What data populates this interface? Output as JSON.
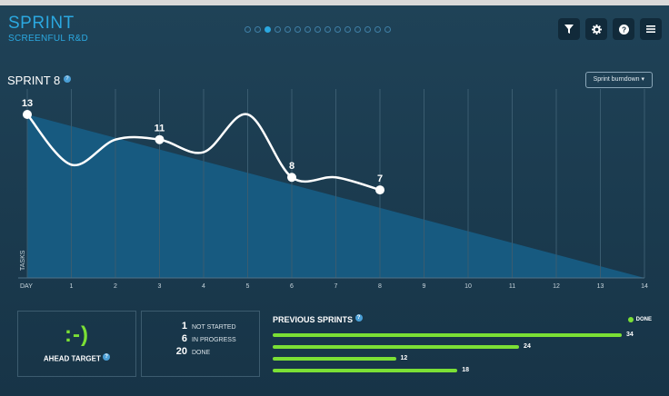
{
  "window": {
    "title": "Screenful"
  },
  "brand": {
    "title": "SPRINT",
    "subtitle": "SCREENFUL R&D"
  },
  "pager": {
    "count": 15,
    "active": 2
  },
  "toolbar": {
    "icons": [
      "filter-icon",
      "gear-icon",
      "help-icon",
      "menu-icon"
    ]
  },
  "chart_header": {
    "title": "SPRINT 8",
    "help": "?",
    "view_select": "Sprint burndown ▾"
  },
  "chart_data": {
    "type": "line",
    "title": "SPRINT 8",
    "xlabel": "DAY",
    "ylabel": "TASKS",
    "x_ticks": [
      "DAY",
      "1",
      "2",
      "3",
      "4",
      "5",
      "6",
      "7",
      "8",
      "9",
      "10",
      "11",
      "12",
      "13",
      "14"
    ],
    "xlim": [
      0,
      14
    ],
    "ylim": [
      0,
      13
    ],
    "ideal": {
      "x": [
        0,
        14
      ],
      "y": [
        13,
        0
      ]
    },
    "series": [
      {
        "x": [
          0,
          1,
          2,
          3,
          4,
          5,
          6,
          7,
          8
        ],
        "y": [
          13,
          9,
          11,
          11,
          10,
          13,
          8,
          8,
          7
        ]
      }
    ],
    "markers": [
      {
        "x": 0,
        "y": 13,
        "label": "13"
      },
      {
        "x": 3,
        "y": 11,
        "label": "11"
      },
      {
        "x": 6,
        "y": 8,
        "label": "8"
      },
      {
        "x": 8,
        "y": 7,
        "label": "7"
      }
    ],
    "colors": {
      "area": "#175a80",
      "line": "#ffffff",
      "grid": "#3a5c70"
    },
    "grid": true
  },
  "status": {
    "smiley": ":-)",
    "label": "AHEAD TARGET",
    "counts": [
      {
        "value": "1",
        "label": "NOT STARTED"
      },
      {
        "value": "6",
        "label": "IN PROGRESS"
      },
      {
        "value": "20",
        "label": "DONE"
      }
    ]
  },
  "previous": {
    "title": "PREVIOUS SPRINTS",
    "legend": "DONE",
    "max": 34,
    "values": [
      34,
      24,
      12,
      18
    ]
  }
}
